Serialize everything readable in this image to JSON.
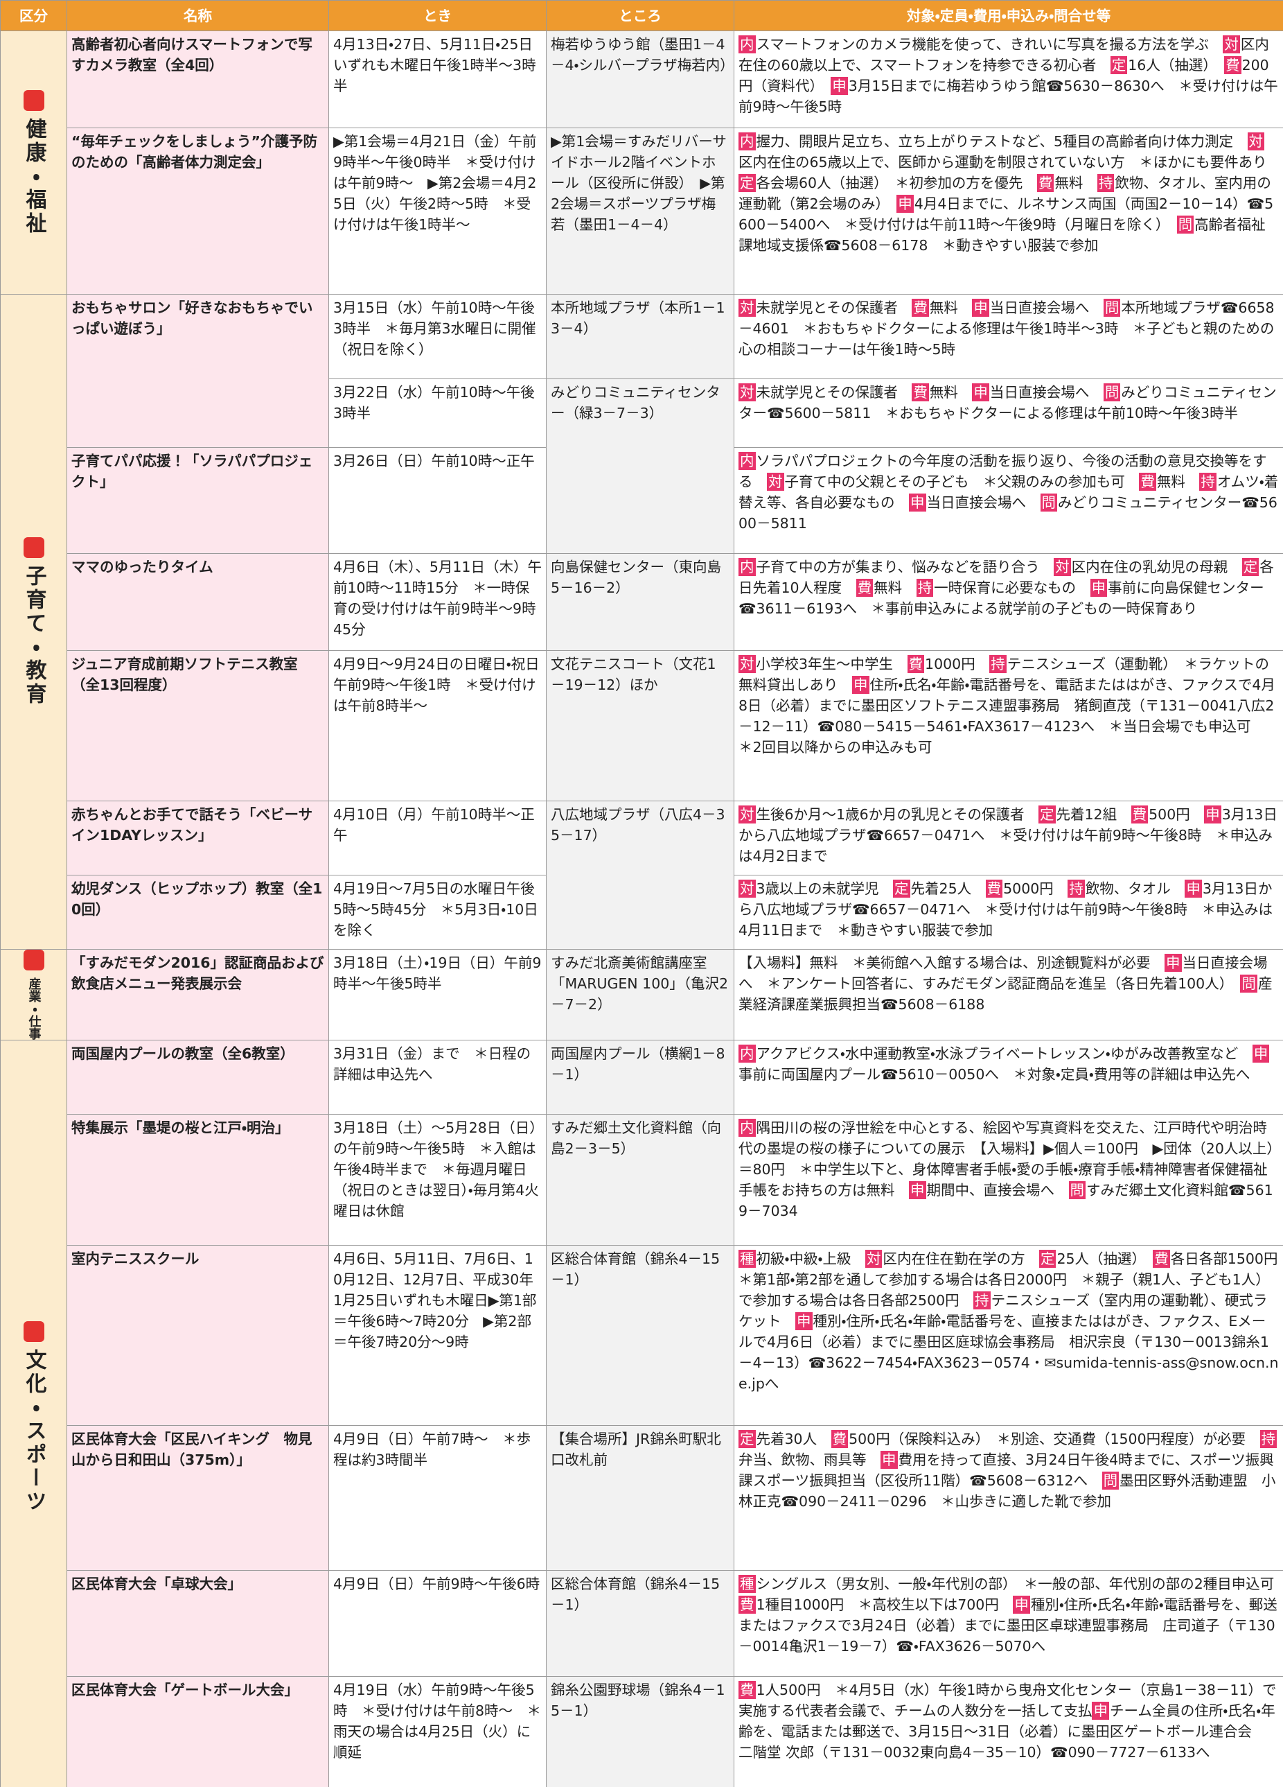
{
  "header": [
    "区分",
    "名称",
    "とき",
    "ところ",
    "対象・定員・費用・申込み・問合せ等"
  ],
  "sections": [
    {
      "label": "健康・福祉",
      "rows": [
        {
          "name": "高齢者初心者向けスマートフォンで写すカメラ教室（全4回）",
          "sessions": [
            {
              "time": "4月13日・27日、5月11日・25日いずれも木曜日午後1時半～3時半",
              "place": "梅若ゆうゆう館（墨田1－4－4・シルバープラザ梅若内）",
              "details": [
                {
                  "label": "内",
                  "text": "スマートフォンのカメラ機能を使って、きれいに写真を撮る方法を学ぶ　"
                },
                {
                  "label": "対",
                  "text": "区内在住の60歳以上で、スマートフォンを持参できる初心者　"
                },
                {
                  "label": "定",
                  "text": "16人（抽選）　"
                },
                {
                  "label": "費",
                  "text": "200円（資料代）　"
                },
                {
                  "label": "申",
                  "text": "3月15日までに梅若ゆうゆう館☎5630－8630へ　＊受け付けは午前9時～午後5時"
                }
              ]
            }
          ]
        },
        {
          "name": "“毎年チェックをしましょう”介護予防のための「高齢者体力測定会」",
          "sessions": [
            {
              "time": "▶第1会場＝4月21日（金）午前9時半～午後0時半　＊受け付けは午前9時～　▶第2会場＝4月25日（火）午後2時～5時　＊受け付けは午後1時半～",
              "place": "▶第1会場＝すみだリバーサイドホール2階イベントホール（区役所に併設）　▶第2会場＝スポーツプラザ梅若（墨田1－4－4）",
              "details": [
                {
                  "label": "内",
                  "text": "握力、開眼片足立ち、立ち上がりテストなど、5種目の高齢者向け体力測定　"
                },
                {
                  "label": "対",
                  "text": "区内在住の65歳以上で、医師から運動を制限されていない方　＊ほかにも要件あり　"
                },
                {
                  "label": "定",
                  "text": "各会場60人（抽選）　＊初参加の方を優先　"
                },
                {
                  "label": "費",
                  "text": "無料　"
                },
                {
                  "label": "持",
                  "text": "飲物、タオル、室内用の運動靴（第2会場のみ）　"
                },
                {
                  "label": "申",
                  "text": "4月4日までに、ルネサンス両国（両国2－10－14）☎5600－5400へ　＊受け付けは午前11時～午後9時（月曜日を除く）　"
                },
                {
                  "label": "問",
                  "text": "高齢者福祉課地域支援係☎5608－6178　＊動きやすい服装で参加"
                }
              ]
            }
          ]
        }
      ]
    },
    {
      "label": "子育て・教育",
      "rows": [
        {
          "name": "おもちゃサロン「好きなおもちゃでいっぱい遊ぼう」",
          "sessions": [
            {
              "time": "3月15日（水）午前10時～午後3時半　＊毎月第3水曜日に開催（祝日を除く）",
              "place": "本所地域プラザ（本所1－13－4）",
              "details": [
                {
                  "label": "対",
                  "text": "未就学児とその保護者　"
                },
                {
                  "label": "費",
                  "text": "無料　"
                },
                {
                  "label": "申",
                  "text": "当日直接会場へ　"
                },
                {
                  "label": "問",
                  "text": "本所地域プラザ☎6658－4601　＊おもちゃドクターによる修理は午後1時半～3時　＊子どもと親のための心の相談コーナーは午後1時～5時"
                }
              ]
            },
            {
              "time": "3月22日（水）午前10時～午後3時半",
              "place": "みどりコミュニティセンター（緑3－7－3）",
              "details": [
                {
                  "label": "対",
                  "text": "未就学児とその保護者　"
                },
                {
                  "label": "費",
                  "text": "無料　"
                },
                {
                  "label": "申",
                  "text": "当日直接会場へ　"
                },
                {
                  "label": "問",
                  "text": "みどりコミュニティセンター☎5600－5811　＊おもちゃドクターによる修理は午前10時～午後3時半"
                }
              ]
            }
          ]
        },
        {
          "name": "子育てパパ応援！「ソラパパプロジェクト」",
          "sessions": [
            {
              "time": "3月26日（日）午前10時～正午",
              "details": [
                {
                  "label": "内",
                  "text": "ソラパパプロジェクトの今年度の活動を振り返り、今後の活動の意見交換等をする　"
                },
                {
                  "label": "対",
                  "text": "子育て中の父親とその子ども　＊父親のみの参加も可　"
                },
                {
                  "label": "費",
                  "text": "無料　"
                },
                {
                  "label": "持",
                  "text": "オムツ・着替え等、各自必要なもの　"
                },
                {
                  "label": "申",
                  "text": "当日直接会場へ　"
                },
                {
                  "label": "問",
                  "text": "みどりコミュニティセンター☎5600－5811"
                }
              ]
            }
          ]
        },
        {
          "name": "ママのゆったりタイム",
          "sessions": [
            {
              "time": "4月6日（木）、5月11日（木）午前10時～11時15分　＊一時保育の受け付けは午前9時半～9時45分",
              "place": "向島保健センター（東向島5－16－2）",
              "details": [
                {
                  "label": "内",
                  "text": "子育て中の方が集まり、悩みなどを語り合う　"
                },
                {
                  "label": "対",
                  "text": "区内在住の乳幼児の母親　"
                },
                {
                  "label": "定",
                  "text": "各日先着10人程度　"
                },
                {
                  "label": "費",
                  "text": "無料　"
                },
                {
                  "label": "持",
                  "text": "一時保育に必要なもの　"
                },
                {
                  "label": "申",
                  "text": "事前に向島保健センター☎3611－6193へ　＊事前申込みによる就学前の子どもの一時保育あり"
                }
              ]
            }
          ]
        },
        {
          "name": "ジュニア育成前期ソフトテニス教室（全13回程度）",
          "sessions": [
            {
              "time": "4月9日～9月24日の日曜日・祝日午前9時～午後1時　＊受け付けは午前8時半～",
              "place": "文花テニスコート（文花1－19－12）ほか",
              "details": [
                {
                  "label": "対",
                  "text": "小学校3年生～中学生　"
                },
                {
                  "label": "費",
                  "text": "1000円　"
                },
                {
                  "label": "持",
                  "text": "テニスシューズ（運動靴）　＊ラケットの無料貸出しあり　"
                },
                {
                  "label": "申",
                  "text": "住所・氏名・年齢・電話番号を、電話またははがき、ファクスで4月8日（必着）までに墨田区ソフトテニス連盟事務局　猪飼直茂（〒131－0041八広2－12－11）☎080－5415－5461・FAX3617－4123へ　＊当日会場でも申込可　＊2回目以降からの申込みも可"
                }
              ]
            }
          ]
        },
        {
          "name": "赤ちゃんとお手てで話そう「ベビーサイン1DAYレッスン」",
          "sessions": [
            {
              "time": "4月10日（月）午前10時半～正午",
              "place": "八広地域プラザ（八広4－35－17）",
              "details": [
                {
                  "label": "対",
                  "text": "生後6か月～1歳6か月の乳児とその保護者　"
                },
                {
                  "label": "定",
                  "text": "先着12組　"
                },
                {
                  "label": "費",
                  "text": "500円　"
                },
                {
                  "label": "申",
                  "text": "3月13日から八広地域プラザ☎6657－0471へ　＊受け付けは午前9時～午後8時　＊申込みは4月2日まで"
                }
              ]
            }
          ]
        },
        {
          "name": "幼児ダンス（ヒップホップ）教室（全10回）",
          "sessions": [
            {
              "time": "4月19日～7月5日の水曜日午後5時～5時45分　＊5月3日・10日を除く",
              "details": [
                {
                  "label": "対",
                  "text": "3歳以上の未就学児　"
                },
                {
                  "label": "定",
                  "text": "先着25人　"
                },
                {
                  "label": "費",
                  "text": "5000円　"
                },
                {
                  "label": "持",
                  "text": "飲物、タオル　"
                },
                {
                  "label": "申",
                  "text": "3月13日から八広地域プラザ☎6657－0471へ　＊受け付けは午前9時～午後8時　＊申込みは4月11日まで　＊動きやすい服装で参加"
                }
              ]
            }
          ]
        }
      ]
    },
    {
      "label": "産業・仕事",
      "rows": [
        {
          "name": "「すみだモダン2016」認証商品および飲食店メニュー発表展示会",
          "sessions": [
            {
              "time": "3月18日（土）・19日（日）午前9時半～午後5時半",
              "place": "すみだ北斎美術館講座室「MARUGEN 100」（亀沢2－7－2）",
              "details": [
                {
                  "text": "【入場料】無料　＊美術館へ入館する場合は、別途観覧料が必要　"
                },
                {
                  "label": "申",
                  "text": "当日直接会場へ　＊アンケート回答者に、すみだモダン認証商品を進呈（各日先着100人）　"
                },
                {
                  "label": "問",
                  "text": "産業経済課産業振興担当☎5608－6188"
                }
              ]
            }
          ]
        }
      ]
    },
    {
      "label": "文化・スポーツ",
      "rows": [
        {
          "name": "両国屋内プールの教室（全6教室）",
          "sessions": [
            {
              "time": "3月31日（金）まで　＊日程の詳細は申込先へ",
              "place": "両国屋内プール（横網1－8－1）",
              "details": [
                {
                  "label": "内",
                  "text": "アクアビクス・水中運動教室・水泳プライベートレッスン・ゆがみ改善教室など　"
                },
                {
                  "label": "申",
                  "text": "事前に両国屋内プール☎5610－0050へ　＊対象・定員・費用等の詳細は申込先へ"
                }
              ]
            }
          ]
        },
        {
          "name": "特集展示「墨堤の桜と江戸・明治」",
          "sessions": [
            {
              "time": "3月18日（土）～5月28日（日）の午前9時～午後5時　＊入館は午後4時半まで　＊毎週月曜日（祝日のときは翌日）・毎月第4火曜日は休館",
              "place": "すみだ郷土文化資料館（向島2－3－5）",
              "details": [
                {
                  "label": "内",
                  "text": "隅田川の桜の浮世絵を中心とする、絵図や写真資料を交えた、江戸時代や明治時代の墨堤の桜の様子についての展示　【入場料】▶個人＝100円　▶団体（20人以上）＝80円　＊中学生以下と、身体障害者手帳・愛の手帳・療育手帳・精神障害者保健福祉手帳をお持ちの方は無料　"
                },
                {
                  "label": "申",
                  "text": "期間中、直接会場へ　"
                },
                {
                  "label": "問",
                  "text": "すみだ郷土文化資料館☎5619－7034"
                }
              ]
            }
          ]
        },
        {
          "name": "室内テニススクール",
          "sessions": [
            {
              "time": "4月6日、5月11日、7月6日、10月12日、12月7日、平成30年1月25日いずれも木曜日▶第1部＝午後6時～7時20分　▶第2部＝午後7時20分～9時",
              "place": "区総合体育館（錦糸4－15－1）",
              "details": [
                {
                  "label": "種",
                  "text": "初級・中級・上級　"
                },
                {
                  "label": "対",
                  "text": "区内在住在勤在学の方　"
                },
                {
                  "label": "定",
                  "text": "25人（抽選）　"
                },
                {
                  "label": "費",
                  "text": "各日各部1500円　＊第1部・第2部を通して参加する場合は各日2000円　＊親子（親1人、子ども1人）で参加する場合は各日各部2500円　"
                },
                {
                  "label": "持",
                  "text": "テニスシューズ（室内用の運動靴）、硬式ラケット　"
                },
                {
                  "label": "申",
                  "text": "種別・住所・氏名・年齢・電話番号を、直接またははがき、ファクス、Eメールで4月6日（必着）までに墨田区庭球協会事務局　相沢宗良（〒130－0013錦糸1－4－13）☎3622－7454・FAX3623－0574・✉sumida-tennis-ass@snow.ocn.ne.jpへ"
                }
              ]
            }
          ]
        },
        {
          "name": "区民体育大会「区民ハイキング　物見山から日和田山（375m）」",
          "sessions": [
            {
              "time": "4月9日（日）午前7時～　＊歩程は約3時間半",
              "place": "【集合場所】JR錦糸町駅北口改札前",
              "details": [
                {
                  "label": "定",
                  "text": "先着30人　"
                },
                {
                  "label": "費",
                  "text": "500円（保険料込み）　＊別途、交通費（1500円程度）が必要　"
                },
                {
                  "label": "持",
                  "text": "弁当、飲物、雨具等　"
                },
                {
                  "label": "申",
                  "text": "費用を持って直接、3月24日午後4時までに、スポーツ振興課スポーツ振興担当（区役所11階）☎5608－6312へ　"
                },
                {
                  "label": "問",
                  "text": "墨田区野外活動連盟　小林正克☎090－2411－0296　＊山歩きに適した靴で参加"
                }
              ]
            }
          ]
        },
        {
          "name": "区民体育大会「卓球大会」",
          "sessions": [
            {
              "time": "4月9日（日）午前9時～午後6時",
              "place": "区総合体育館（錦糸4－15－1）",
              "details": [
                {
                  "label": "種",
                  "text": "シングルス（男女別、一般・年代別の部）　＊一般の部、年代別の部の2種目申込可　"
                },
                {
                  "label": "費",
                  "text": "1種目1000円　＊高校生以下は700円　"
                },
                {
                  "label": "申",
                  "text": "種別・住所・氏名・年齢・電話番号を、郵送またはファクスで3月24日（必着）までに墨田区卓球連盟事務局　庄司道子（〒130－0014亀沢1－19－7）☎・FAX3626－5070へ"
                }
              ]
            }
          ]
        },
        {
          "name": "区民体育大会「ゲートボール大会」",
          "sessions": [
            {
              "time": "4月19日（水）午前9時～午後5時　＊受け付けは午前8時～　＊雨天の場合は4月25日（火）に順延",
              "place": "錦糸公園野球場（錦糸4－15－1）",
              "details": [
                {
                  "label": "費",
                  "text": "1人500円　＊4月5日（水）午後1時から曳舟文化センター（京島1－38－11）で実施する代表者会議で、チームの人数分を一括して支払"
                },
                {
                  "label": "申",
                  "text": "チーム全員の住所・氏名・年齢を、電話または郵送で、3月15日～31日（必着）に墨田区ゲートボール連合会　二階堂 次郎（〒131－0032東向島4－35－10）☎090－7727－6133へ"
                }
              ]
            }
          ]
        }
      ]
    }
  ]
}
